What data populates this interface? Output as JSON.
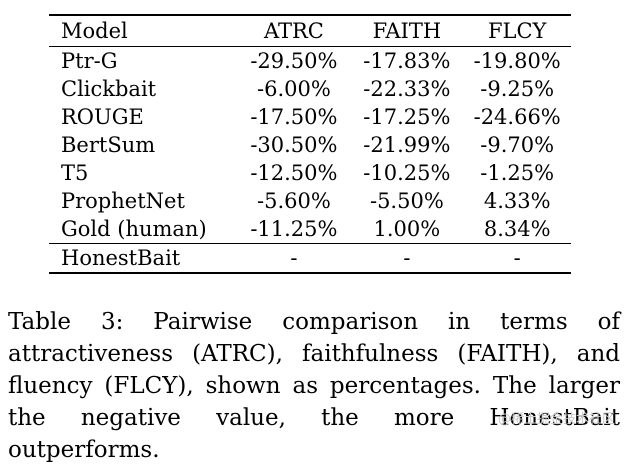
{
  "table": {
    "columns": [
      "Model",
      "ATRC",
      "FAITH",
      "FLCY"
    ],
    "rows": [
      [
        "Ptr-G",
        "-29.50%",
        "-17.83%",
        "-19.80%"
      ],
      [
        "Clickbait",
        "-6.00%",
        "-22.33%",
        "-9.25%"
      ],
      [
        "ROUGE",
        "-17.50%",
        "-17.25%",
        "-24.66%"
      ],
      [
        "BertSum",
        "-30.50%",
        "-21.99%",
        "-9.70%"
      ],
      [
        "T5",
        "-12.50%",
        "-10.25%",
        "-1.25%"
      ],
      [
        "ProphetNet",
        "-5.60%",
        "-5.50%",
        "4.33%"
      ],
      [
        "Gold (human)",
        "-11.25%",
        "1.00%",
        "8.34%"
      ]
    ],
    "final_row": [
      "HonestBait",
      "-",
      "-",
      "-"
    ]
  },
  "caption": "Table 3:  Pairwise comparison in terms of attractiveness (ATRC), faithfulness (FAITH), and fluency (FLCY), shown as percentages. The larger the negative value, the more HonestBait outperforms.",
  "watermark": "@稀土掘金技术社区"
}
